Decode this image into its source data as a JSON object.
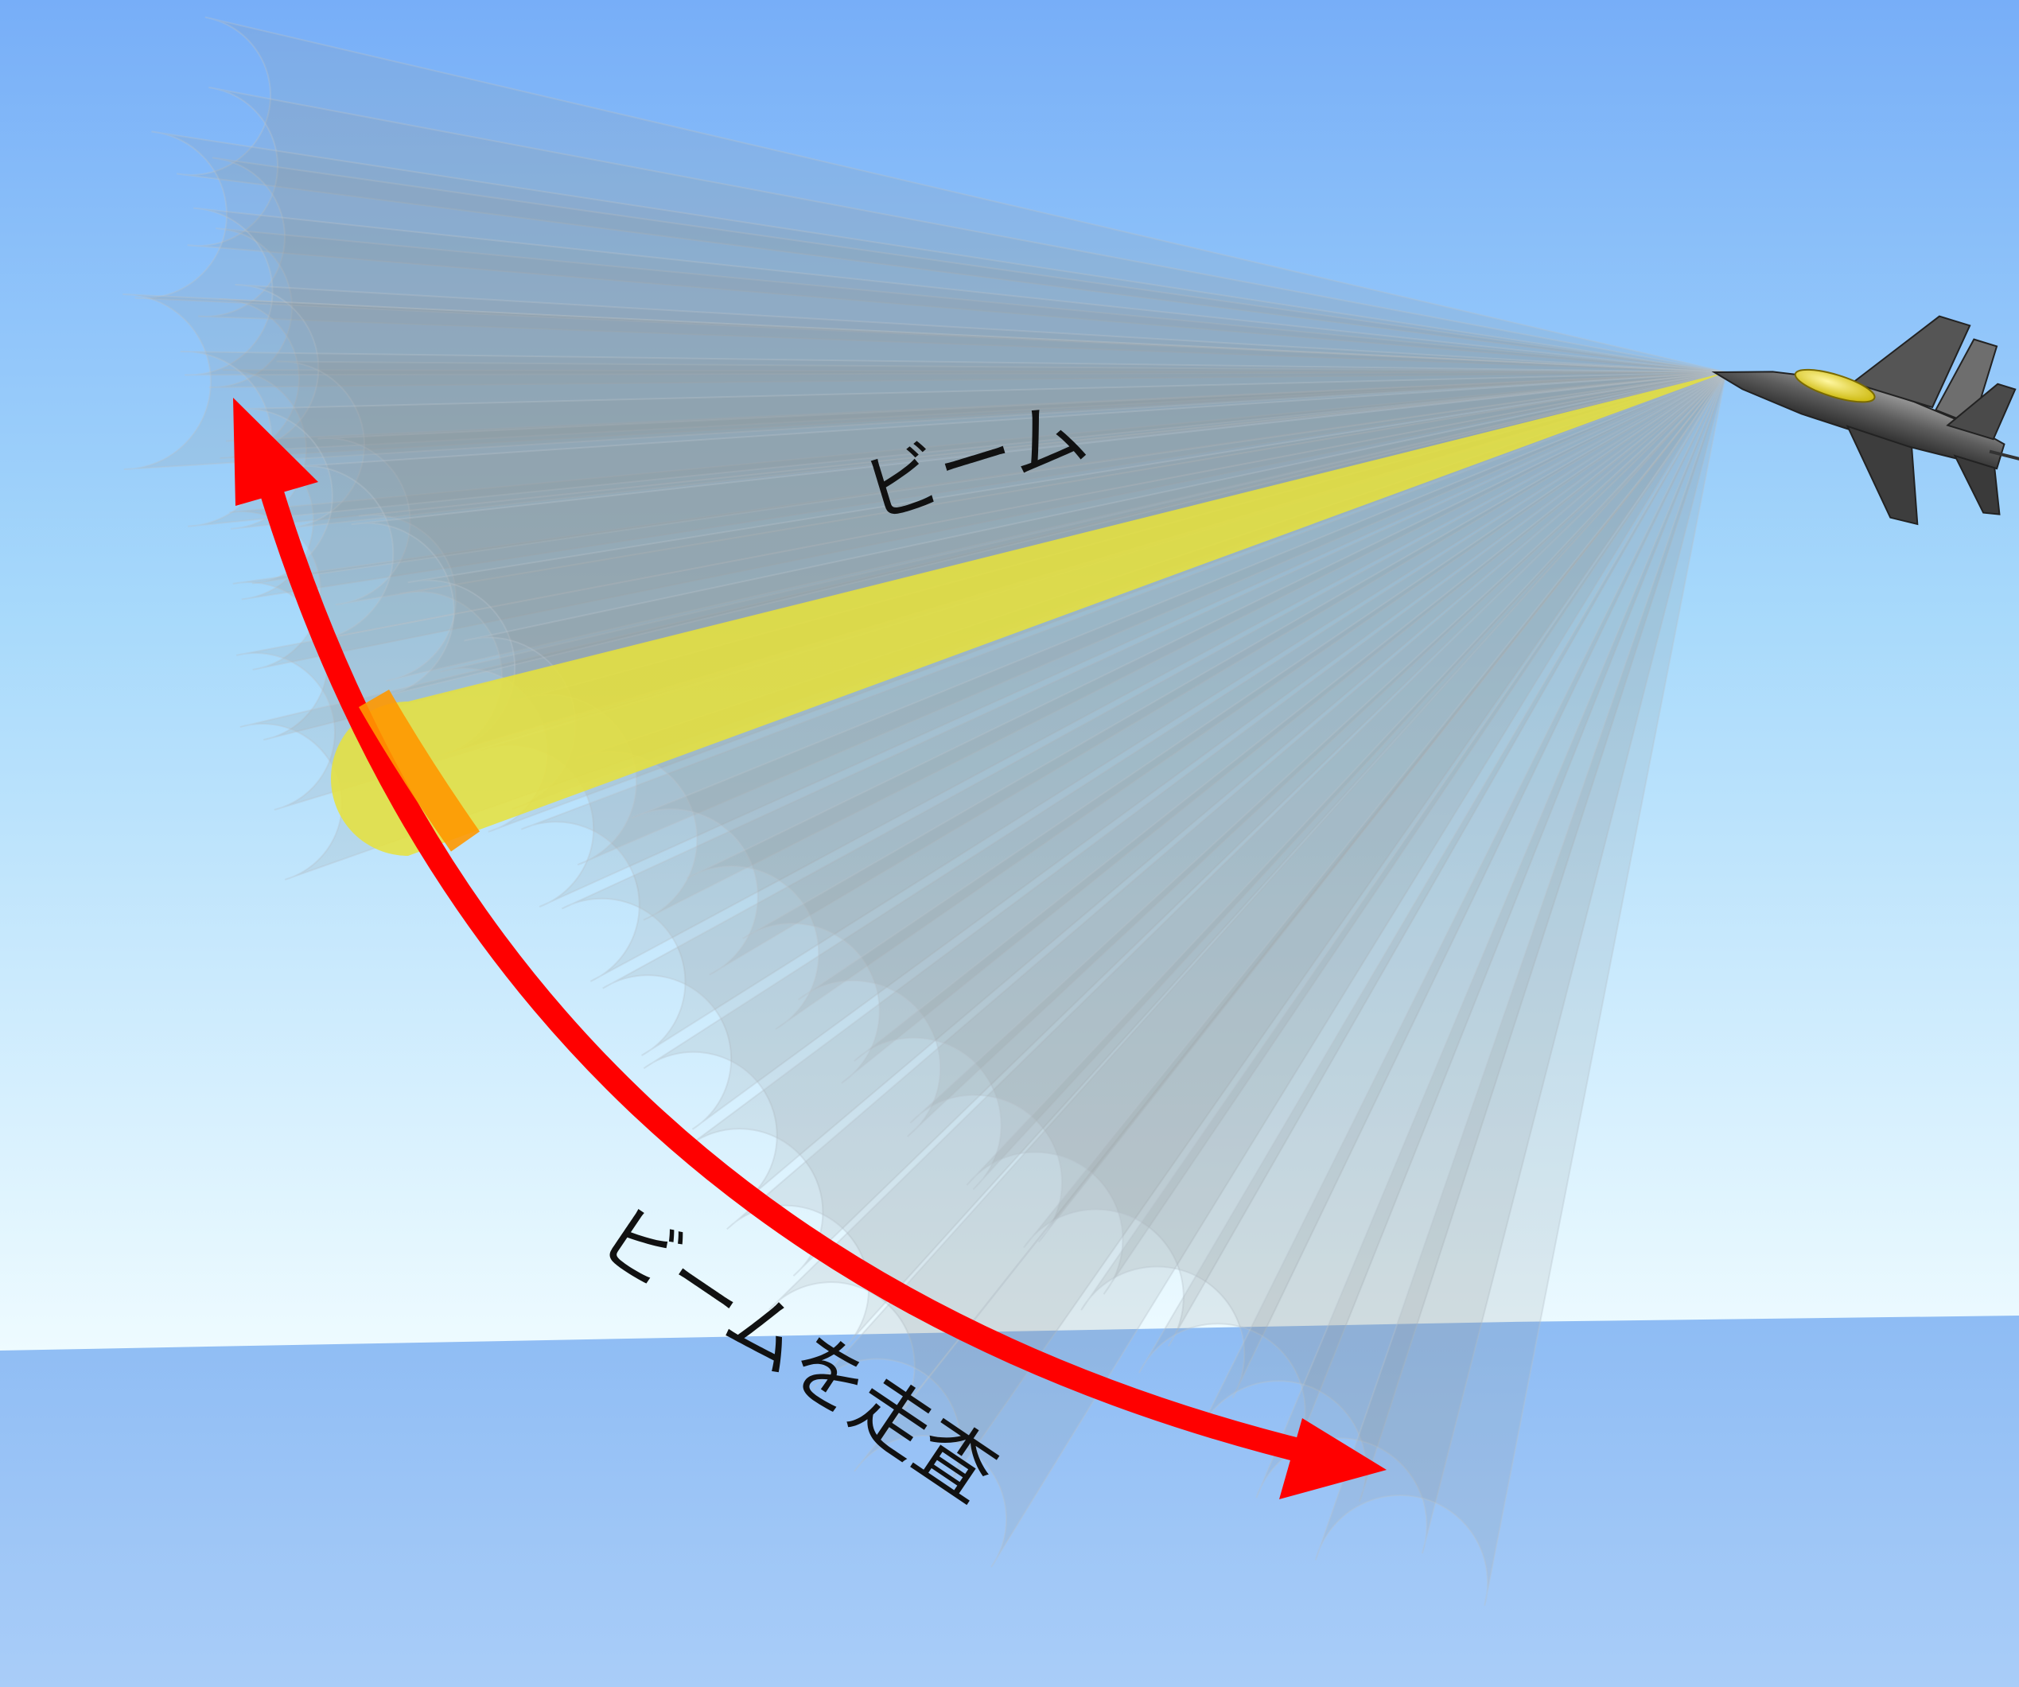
{
  "labels": {
    "beam": "ビーム",
    "scan": "ビームを走査"
  },
  "icons": {
    "aircraft": "fighter-jet-icon",
    "scan_arrow": "double-headed-curved-arrow-icon"
  },
  "colors": {
    "sky_top": "#77aef8",
    "sky_horizon": "#eefbff",
    "sea_top": "#8ebcf4",
    "sea_bottom": "#a9cdf8",
    "beam_gray": "#8f9397",
    "beam_active": "#e8e23a",
    "scan_arrow": "#ff0000",
    "overlap": "#ff9800"
  }
}
